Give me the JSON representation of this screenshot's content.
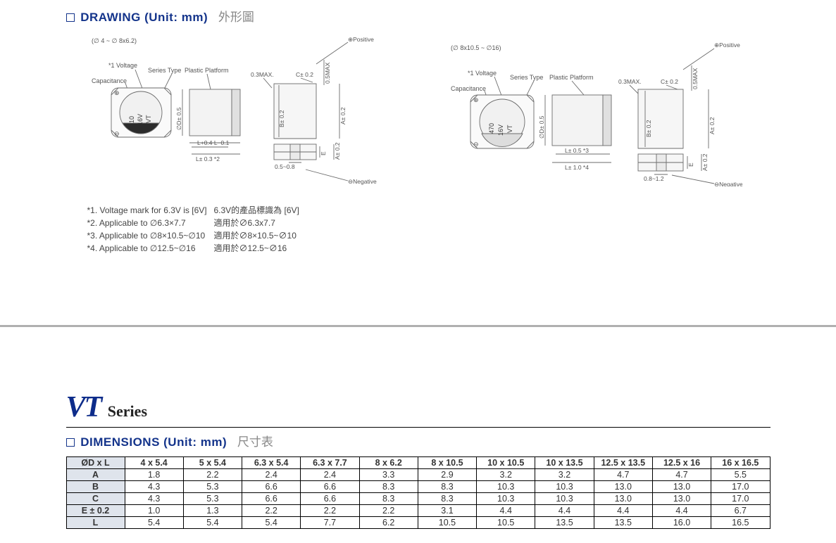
{
  "section1": {
    "title_en": "DRAWING (Unit: mm)",
    "title_zh": "外形圖"
  },
  "section2": {
    "title_en": "DIMENSIONS (Unit: mm)",
    "title_zh": "尺寸表"
  },
  "series": {
    "code": "VT",
    "word": "Series"
  },
  "draw_left": {
    "range": "(∅ 4 ~ ∅ 8x6.2)",
    "voltage_note": "*1  Voltage",
    "capacitance": "Capacitance",
    "series_type": "Series Type",
    "platform": "Plastic Platform",
    "phiD": "∅D± 0.5",
    "L_tol": "L+0.4\nL−0.1",
    "L_star": "L± 0.3 *2",
    "gap": "0.3MAX.",
    "C": "C± 0.2",
    "hmax": "0.5MAX",
    "A1": "A± 0.2",
    "B": "B± 0.2",
    "bot": "0.5~0.8",
    "A2": "A± 0.2",
    "E": "E",
    "pos": "⊕Positive",
    "neg": "⊖Negative",
    "cap_vals": [
      "10",
      "16V",
      "VT"
    ]
  },
  "draw_right": {
    "range": "(∅ 8x10.5 ~ ∅16)",
    "voltage_note": "*1  Voltage",
    "capacitance": "Capacitance",
    "series_type": "Series Type",
    "platform": "Plastic Platform",
    "phiD": "∅D± 0.5",
    "L_top": "L± 0.5 *3",
    "L_bot": "L± 1.0 *4",
    "gap": "0.3MAX.",
    "C": "C± 0.2",
    "hmax": "0.5MAX",
    "A1": "A± 0.2",
    "B": "B± 0.2",
    "bot": "0.8~1.2",
    "A2": "A± 0.2",
    "E": "E",
    "pos": "⊕Positive",
    "neg": "⊖Negative",
    "cap_vals": [
      "470",
      "16V",
      "VT"
    ]
  },
  "notes": [
    {
      "en": "*1. Voltage mark for 6.3V is [6V]",
      "zh": "6.3V的產品標識為  [6V]"
    },
    {
      "en": "*2. Applicable to ∅6.3×7.7",
      "zh": "適用於∅6.3x7.7"
    },
    {
      "en": "*3. Applicable to ∅8×10.5~∅10",
      "zh": "適用於∅8×10.5~∅10"
    },
    {
      "en": "*4. Applicable to ∅12.5~∅16",
      "zh": "適用於∅12.5~∅16"
    }
  ],
  "dim_table": {
    "header": [
      "ØD x L",
      "4 x 5.4",
      "5 x 5.4",
      "6.3 x 5.4",
      "6.3 x 7.7",
      "8 x 6.2",
      "8 x 10.5",
      "10 x 10.5",
      "10 x 13.5",
      "12.5 x 13.5",
      "12.5 x 16",
      "16 x 16.5"
    ],
    "rows": [
      {
        "label": "A",
        "vals": [
          "1.8",
          "2.2",
          "2.4",
          "2.4",
          "3.3",
          "2.9",
          "3.2",
          "3.2",
          "4.7",
          "4.7",
          "5.5"
        ]
      },
      {
        "label": "B",
        "vals": [
          "4.3",
          "5.3",
          "6.6",
          "6.6",
          "8.3",
          "8.3",
          "10.3",
          "10.3",
          "13.0",
          "13.0",
          "17.0"
        ]
      },
      {
        "label": "C",
        "vals": [
          "4.3",
          "5.3",
          "6.6",
          "6.6",
          "8.3",
          "8.3",
          "10.3",
          "10.3",
          "13.0",
          "13.0",
          "17.0"
        ]
      },
      {
        "label": "E ± 0.2",
        "vals": [
          "1.0",
          "1.3",
          "2.2",
          "2.2",
          "2.2",
          "3.1",
          "4.4",
          "4.4",
          "4.4",
          "4.4",
          "6.7"
        ]
      },
      {
        "label": "L",
        "vals": [
          "5.4",
          "5.4",
          "5.4",
          "7.7",
          "6.2",
          "10.5",
          "10.5",
          "13.5",
          "13.5",
          "16.0",
          "16.5"
        ]
      }
    ]
  },
  "style": {
    "brand_color": "#14348b",
    "zh_color": "#888",
    "hdr_bg": "#dfe4ec",
    "line": "#000",
    "draw_stroke": "#6b6b6b",
    "fill_gray": "#e6e6e6",
    "fill_dark": "#2b2b2b"
  }
}
